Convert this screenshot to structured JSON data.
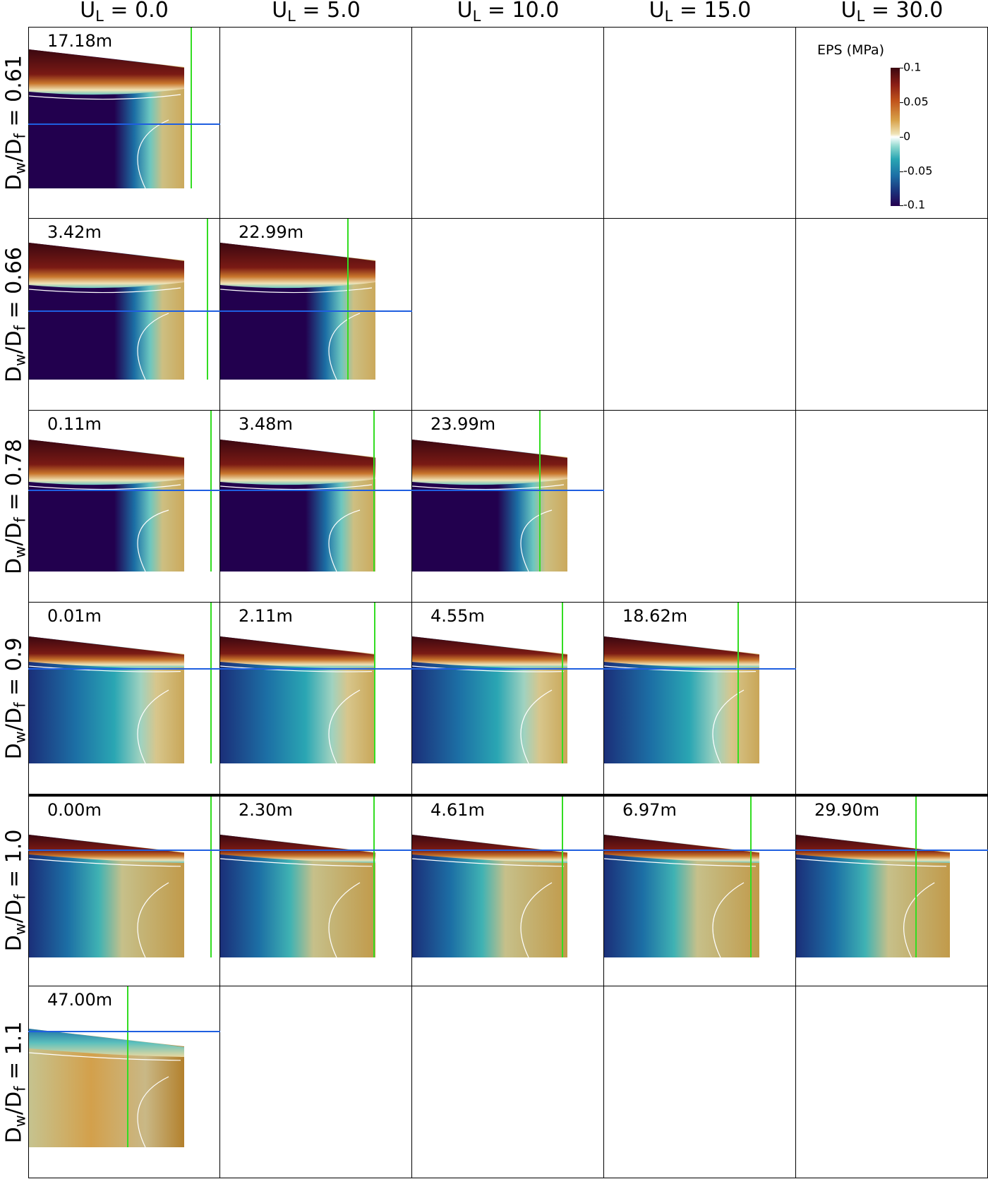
{
  "column_headers": [
    {
      "base": "U",
      "sub": "L",
      "rest": " = 0.0"
    },
    {
      "base": "U",
      "sub": "L",
      "rest": " = 5.0"
    },
    {
      "base": "U",
      "sub": "L",
      "rest": " = 10.0"
    },
    {
      "base": "U",
      "sub": "L",
      "rest": " = 15.0"
    },
    {
      "base": "U",
      "sub": "L",
      "rest": " = 30.0"
    }
  ],
  "row_labels": [
    {
      "p1": "D",
      "s1": "w",
      "p2": "/D",
      "s2": "f",
      "rest": " = 0.61"
    },
    {
      "p1": "D",
      "s1": "w",
      "p2": "/D",
      "s2": "f",
      "rest": " = 0.66"
    },
    {
      "p1": "D",
      "s1": "w",
      "p2": "/D",
      "s2": "f",
      "rest": " = 0.78"
    },
    {
      "p1": "D",
      "s1": "w",
      "p2": "/D",
      "s2": "f",
      "rest": " = 0.9"
    },
    {
      "p1": "D",
      "s1": "w",
      "p2": "/D",
      "s2": "f",
      "rest": " = 1.0"
    },
    {
      "p1": "D",
      "s1": "w",
      "p2": "/D",
      "s2": "f",
      "rest": " = 1.1"
    }
  ],
  "panels": [
    [
      "17.18m",
      null,
      null,
      null,
      null
    ],
    [
      "3.42m",
      "22.99m",
      null,
      null,
      null
    ],
    [
      "0.11m",
      "3.48m",
      "23.99m",
      null,
      null
    ],
    [
      "0.01m",
      "2.11m",
      "4.55m",
      "18.62m",
      null
    ],
    [
      "0.00m",
      "2.30m",
      "4.61m",
      "6.97m",
      "29.90m"
    ],
    [
      "47.00m",
      null,
      null,
      null,
      null
    ]
  ],
  "colorbar": {
    "title": "EPS (MPa)",
    "ticks": [
      "0.1",
      "0.05",
      "0",
      "-0.05",
      "-0.1"
    ],
    "colors": {
      "max": "#3b0710",
      "mid": "#ffffff",
      "min": "#25004f"
    }
  },
  "line_colors": {
    "calving_front_marker": "#33dd22",
    "water_line": "#1f5fe0",
    "contour": "#ffffff"
  }
}
